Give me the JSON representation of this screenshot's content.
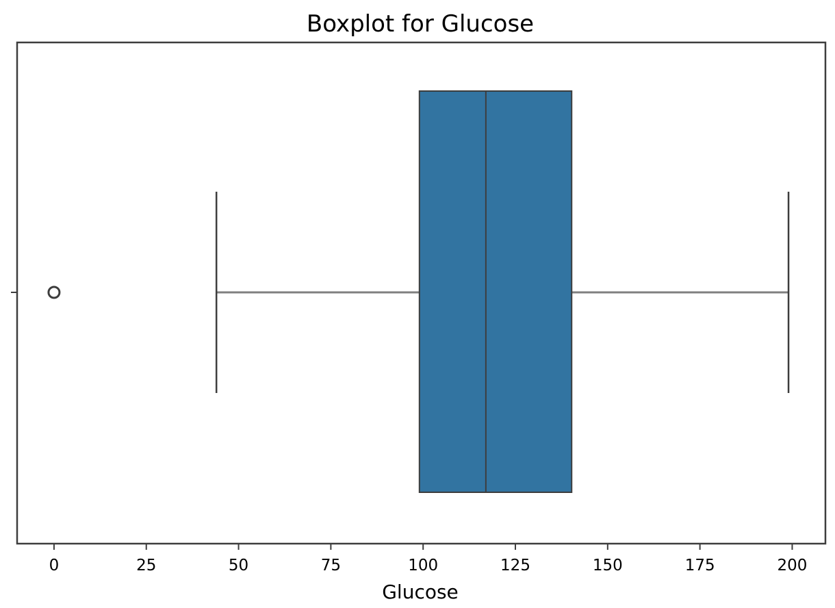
{
  "chart_data": {
    "type": "box",
    "orientation": "horizontal",
    "title": "Boxplot for Glucose",
    "xlabel": "Glucose",
    "ylabel": "",
    "xlim": [
      -10,
      209
    ],
    "xticks": [
      0,
      25,
      50,
      75,
      100,
      125,
      150,
      175,
      200
    ],
    "xtick_labels": [
      "0",
      "25",
      "50",
      "75",
      "100",
      "125",
      "150",
      "175",
      "200"
    ],
    "grid": false,
    "series": [
      {
        "whisker_low": 44,
        "q1": 99,
        "median": 117,
        "q3": 140.25,
        "whisker_high": 199,
        "outliers": [
          0
        ],
        "color": "#3274a1"
      }
    ]
  },
  "colors": {
    "box_fill": "#3274a1",
    "line": "#3d3d3d",
    "whisker": "#7f7f7f",
    "axes": "#3d3d3d"
  }
}
